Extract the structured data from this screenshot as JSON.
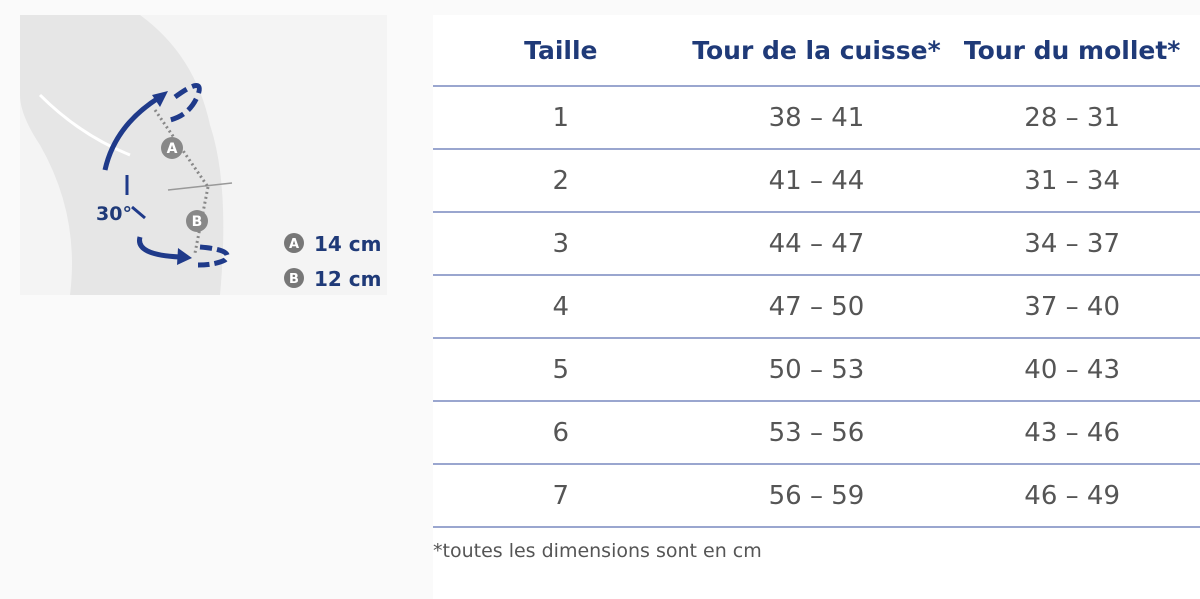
{
  "figure": {
    "angle": "30°",
    "point_a": "A",
    "point_b": "B",
    "legend": [
      {
        "marker": "A",
        "text": "14 cm"
      },
      {
        "marker": "B",
        "text": "12 cm"
      }
    ]
  },
  "table": {
    "headers": [
      "Taille",
      "Tour de la cuisse*",
      "Tour du mollet*"
    ],
    "rows": [
      [
        "1",
        "38 – 41",
        "28 – 31"
      ],
      [
        "2",
        "41 – 44",
        "31 – 34"
      ],
      [
        "3",
        "44 – 47",
        "34 – 37"
      ],
      [
        "4",
        "47 – 50",
        "37 – 40"
      ],
      [
        "5",
        "50 – 53",
        "40 – 43"
      ],
      [
        "6",
        "53 – 56",
        "43 – 46"
      ],
      [
        "7",
        "56 – 59",
        "46 – 49"
      ]
    ],
    "footnote": "*toutes les dimensions sont en cm"
  }
}
